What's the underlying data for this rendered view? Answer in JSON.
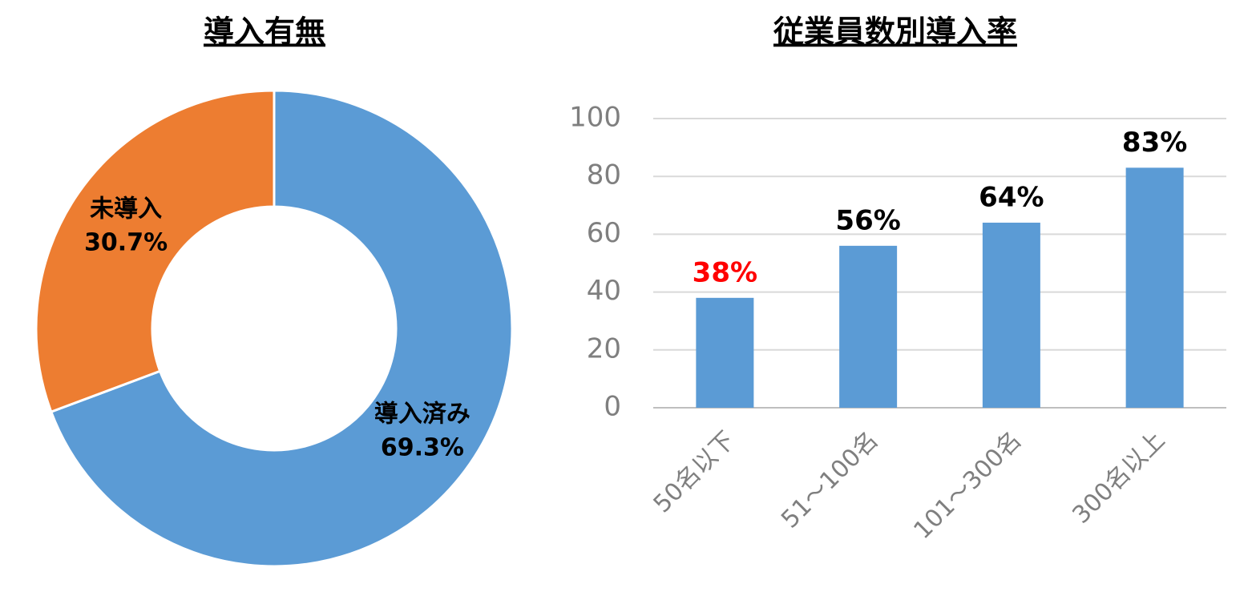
{
  "chart_data": [
    {
      "type": "pie",
      "title": "導入有無",
      "categories": [
        "導入済み",
        "未導入"
      ],
      "values": [
        69.3,
        30.7
      ],
      "value_labels": [
        "69.3%",
        "30.7%"
      ],
      "colors": [
        "#5b9bd5",
        "#ed7d31"
      ],
      "donut": true
    },
    {
      "type": "bar",
      "title": "従業員数別導入率",
      "categories": [
        "50名以下",
        "51～100名",
        "101～300名",
        "300名以上"
      ],
      "values": [
        38,
        56,
        64,
        83
      ],
      "value_labels": [
        "38%",
        "56%",
        "64%",
        "83%"
      ],
      "value_label_colors": [
        "#ff0000",
        "#000000",
        "#000000",
        "#000000"
      ],
      "color": "#5b9bd5",
      "ylim": [
        0,
        100
      ],
      "yticks": [
        0,
        20,
        40,
        60,
        80,
        100
      ],
      "grid": true
    }
  ]
}
